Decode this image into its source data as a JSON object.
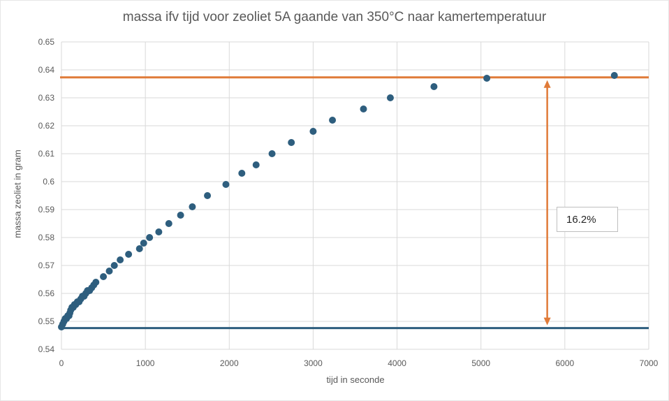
{
  "chart_data": {
    "type": "scatter",
    "title": "massa ifv tijd voor zeoliet 5A gaande van 350°C naar kamertemperatuur",
    "xlabel": "tijd in seconde",
    "ylabel": "massa zeoliet in gram",
    "xlim": [
      0,
      7000
    ],
    "ylim": [
      0.54,
      0.65
    ],
    "xticks": [
      0,
      1000,
      2000,
      3000,
      4000,
      5000,
      6000,
      7000
    ],
    "yticks": [
      0.54,
      0.55,
      0.56,
      0.57,
      0.58,
      0.59,
      0.6,
      0.61,
      0.62,
      0.63,
      0.64,
      0.65
    ],
    "grid": true,
    "series": [
      {
        "color": "#2e5e7e",
        "points": [
          [
            0,
            0.548
          ],
          [
            15,
            0.549
          ],
          [
            30,
            0.55
          ],
          [
            45,
            0.551
          ],
          [
            60,
            0.551
          ],
          [
            75,
            0.552
          ],
          [
            90,
            0.552
          ],
          [
            100,
            0.553
          ],
          [
            110,
            0.554
          ],
          [
            125,
            0.555
          ],
          [
            140,
            0.555
          ],
          [
            155,
            0.556
          ],
          [
            170,
            0.556
          ],
          [
            190,
            0.557
          ],
          [
            210,
            0.557
          ],
          [
            230,
            0.558
          ],
          [
            250,
            0.559
          ],
          [
            270,
            0.559
          ],
          [
            290,
            0.56
          ],
          [
            310,
            0.561
          ],
          [
            335,
            0.561
          ],
          [
            360,
            0.562
          ],
          [
            385,
            0.563
          ],
          [
            410,
            0.564
          ],
          [
            500,
            0.566
          ],
          [
            570,
            0.568
          ],
          [
            630,
            0.57
          ],
          [
            700,
            0.572
          ],
          [
            800,
            0.574
          ],
          [
            930,
            0.576
          ],
          [
            980,
            0.578
          ],
          [
            1050,
            0.58
          ],
          [
            1160,
            0.582
          ],
          [
            1280,
            0.585
          ],
          [
            1420,
            0.588
          ],
          [
            1560,
            0.591
          ],
          [
            1740,
            0.595
          ],
          [
            1960,
            0.599
          ],
          [
            2150,
            0.603
          ],
          [
            2320,
            0.606
          ],
          [
            2510,
            0.61
          ],
          [
            2740,
            0.614
          ],
          [
            3000,
            0.618
          ],
          [
            3230,
            0.622
          ],
          [
            3600,
            0.626
          ],
          [
            3920,
            0.63
          ],
          [
            4440,
            0.634
          ],
          [
            5070,
            0.637
          ],
          [
            6590,
            0.638
          ]
        ]
      }
    ],
    "reference_lines": [
      {
        "color": "#e07b39",
        "y": 0.6373
      },
      {
        "color": "#2e5e7e",
        "y": 0.5476
      }
    ],
    "annotation": {
      "text": "16.2%",
      "arrow_x": 5790,
      "arrow_y": [
        0.5476,
        0.6373
      ],
      "arrow_color": "#e07b39"
    }
  }
}
